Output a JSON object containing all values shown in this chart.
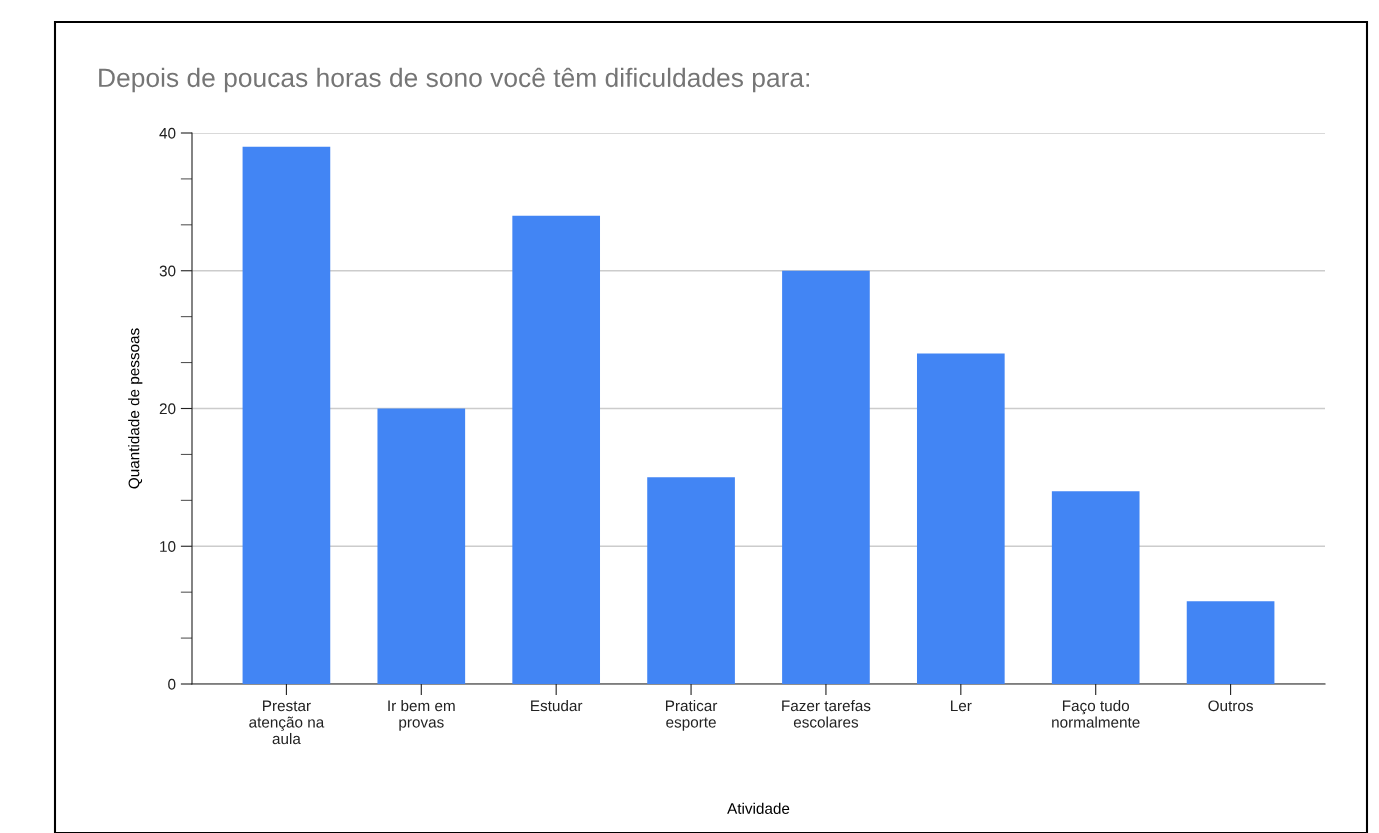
{
  "chart_data": {
    "type": "bar",
    "title": "Depois de poucas horas de sono você têm dificuldades para:",
    "xlabel": "Atividade",
    "ylabel": "Quantidade de pessoas",
    "categories": [
      "Prestar atenção na aula",
      "Ir bem em provas",
      "Estudar",
      "Praticar esporte",
      "Fazer tarefas escolares",
      "Ler",
      "Faço tudo normalmente",
      "Outros"
    ],
    "values": [
      39,
      20,
      34,
      15,
      30,
      24,
      14,
      6
    ],
    "color": "#4285f4",
    "ylim": [
      0,
      40
    ],
    "yticks": [
      0,
      10,
      20,
      30,
      40
    ],
    "grid": "y",
    "legend": false
  }
}
